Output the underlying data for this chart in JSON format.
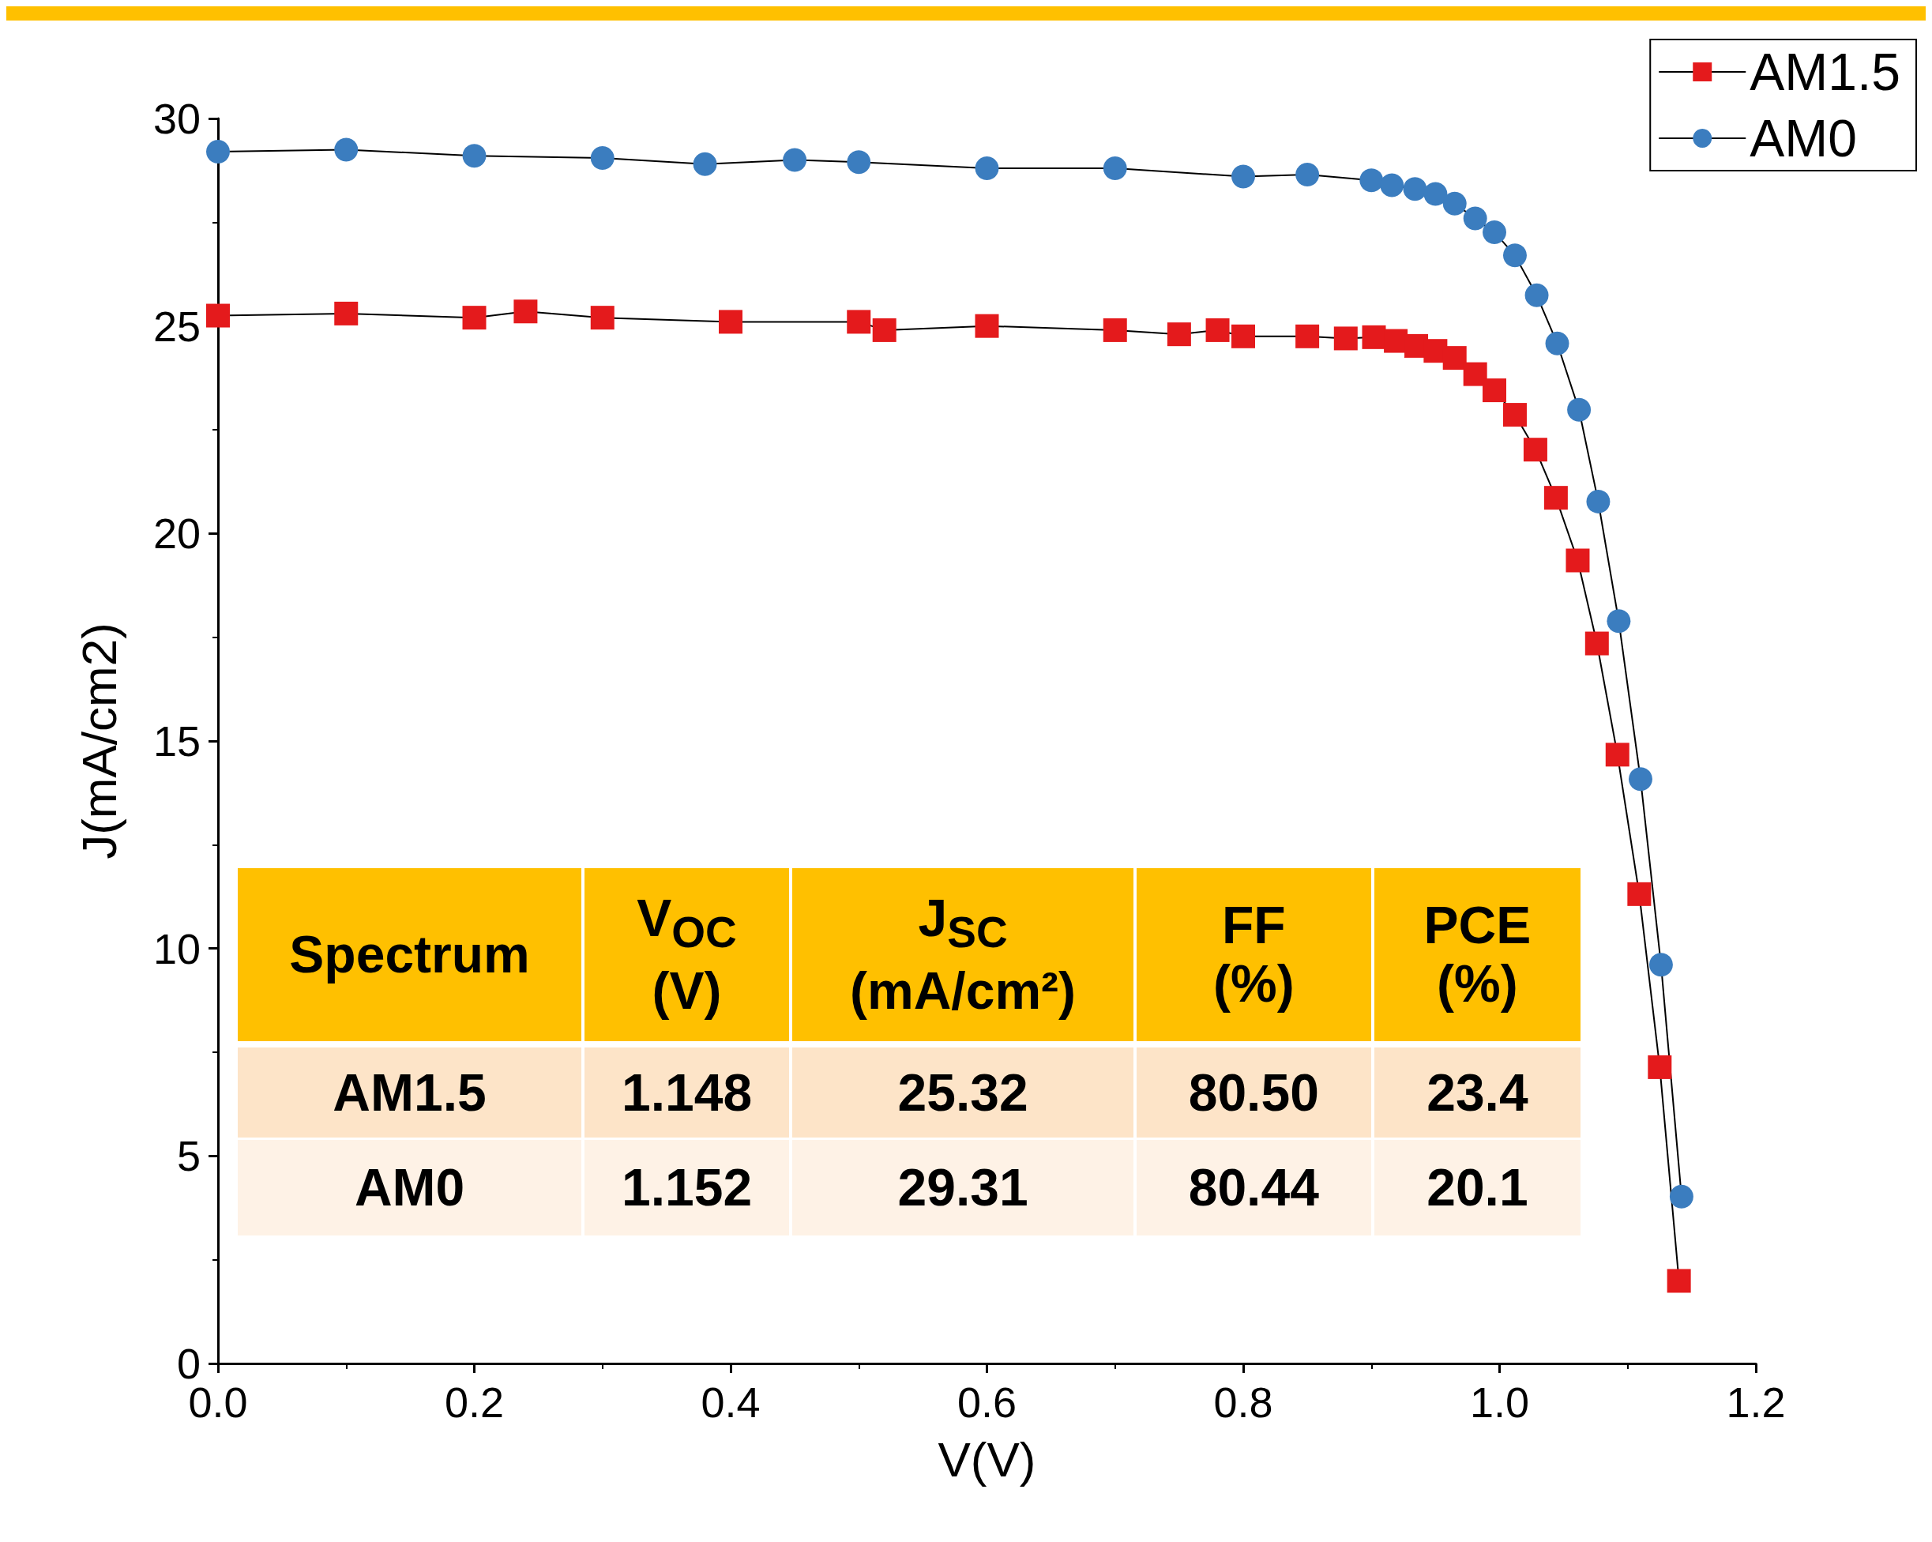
{
  "chart_data": {
    "type": "line",
    "xlabel": "V(V)",
    "ylabel": "J(mA/cm2)",
    "xlim": [
      0,
      1.2
    ],
    "xticks": [
      {
        "value": 0,
        "label": "0.0"
      },
      0.2,
      0.4,
      0.6,
      0.8,
      {
        "value": 1,
        "label": "1.0"
      },
      1.2
    ],
    "ylim": [
      0,
      30
    ],
    "yticks": [
      0,
      5,
      10,
      15,
      20,
      25,
      30
    ],
    "grid": false,
    "legend": "top right",
    "line_style": "solid",
    "series": [
      {
        "name": "AM1.5",
        "color": "#e41a1c",
        "marker": "square",
        "x": [
          0,
          0.1,
          0.2,
          0.24,
          0.3,
          0.4,
          0.5,
          0.52,
          0.6,
          0.7,
          0.75,
          0.78,
          0.8,
          0.85,
          0.88,
          0.902,
          0.919,
          0.935,
          0.95,
          0.965,
          0.981,
          0.996,
          1.012,
          1.028,
          1.044,
          1.061,
          1.076,
          1.092,
          1.109,
          1.125,
          1.14
        ],
        "values": [
          25.25,
          25.3,
          25.2,
          25.35,
          25.2,
          25.1,
          25.1,
          24.9,
          25.0,
          24.9,
          24.8,
          24.9,
          24.75,
          24.75,
          24.7,
          24.73,
          24.64,
          24.52,
          24.4,
          24.23,
          23.84,
          23.45,
          22.86,
          22.02,
          20.86,
          19.35,
          17.35,
          14.67,
          11.31,
          7.14,
          1.99
        ]
      },
      {
        "name": "AM0",
        "color": "#3b7dbf",
        "marker": "circle",
        "x": [
          0,
          0.1,
          0.2,
          0.3,
          0.38,
          0.45,
          0.5,
          0.6,
          0.7,
          0.8,
          0.85,
          0.9,
          0.916,
          0.934,
          0.95,
          0.965,
          0.981,
          0.996,
          1.012,
          1.029,
          1.045,
          1.062,
          1.077,
          1.093,
          1.11,
          1.126,
          1.142
        ],
        "values": [
          29.2,
          29.25,
          29.1,
          29.05,
          28.9,
          29.0,
          28.95,
          28.8,
          28.8,
          28.6,
          28.65,
          28.51,
          28.39,
          28.3,
          28.18,
          27.95,
          27.59,
          27.26,
          26.7,
          25.74,
          24.58,
          22.98,
          20.77,
          17.89,
          14.08,
          9.61,
          4.02
        ]
      }
    ],
    "annotations": [
      "Spectrum",
      "V$_{OC}$\n(V)",
      "J$_{SC}$\n(mA/cm²)",
      "FF\n(%)",
      "PCE\n(%)",
      "AM1.5",
      "1.148",
      "25.32",
      "80.50",
      "23.4",
      "AM0",
      "1.152",
      "29.31",
      "80.44",
      "20.1"
    ]
  }
}
